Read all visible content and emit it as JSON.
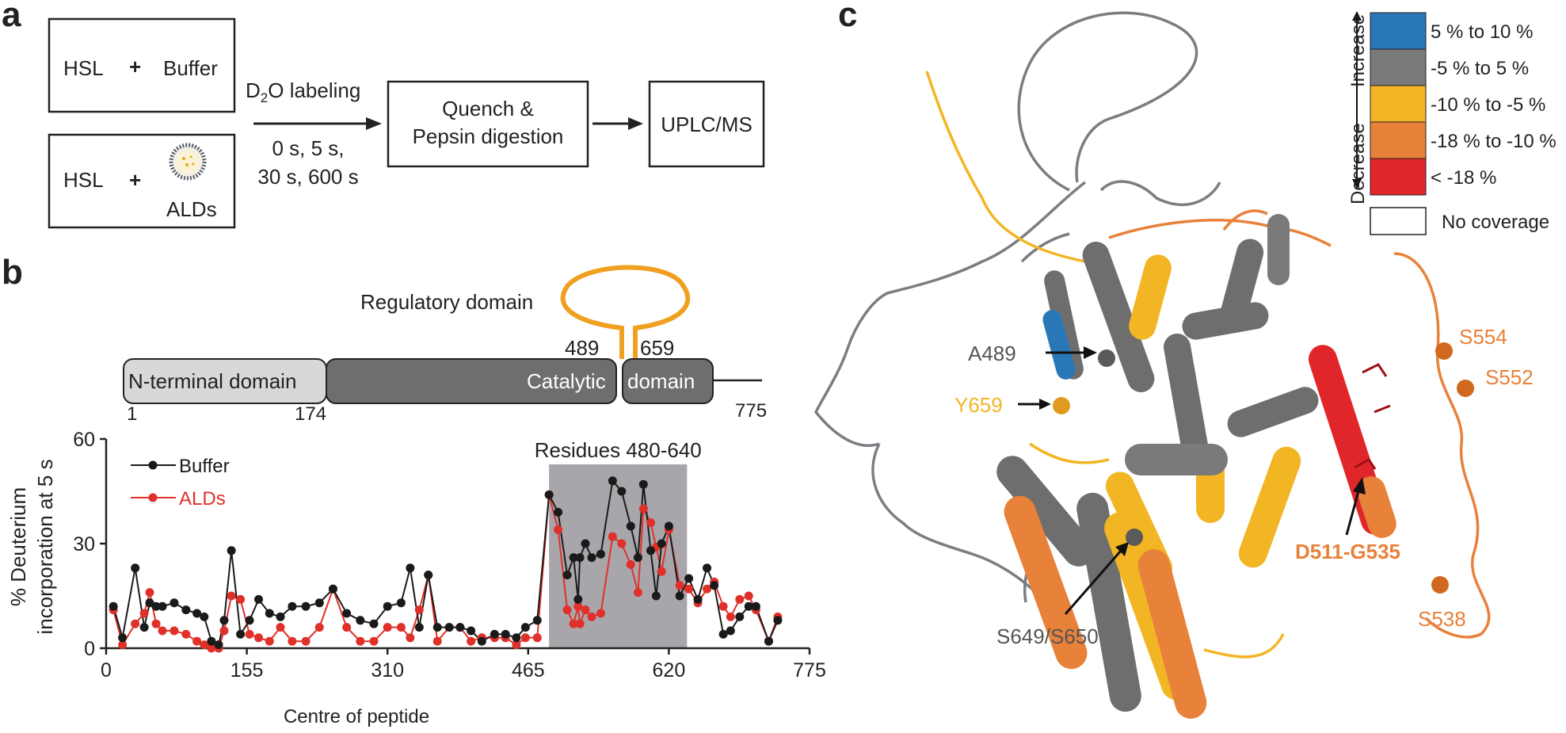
{
  "panels": {
    "a": {
      "letter": "a",
      "box1": {
        "left": "HSL",
        "plus": "+",
        "right": "Buffer"
      },
      "box2": {
        "left": "HSL",
        "plus": "+",
        "right": "ALDs"
      },
      "labeling": {
        "main": "D",
        "sub": "2",
        "rest": "O labeling",
        "times1": "0 s, 5 s,",
        "times2": "30 s, 600 s"
      },
      "quench": {
        "line1": "Quench &",
        "line2": "Pepsin digestion"
      },
      "uplc": "UPLC/MS"
    },
    "b": {
      "letter": "b",
      "domain_map": {
        "regulatory_label": "Regulatory domain",
        "n_terminal_label": "N-terminal domain",
        "catalytic_left": "Catalytic",
        "catalytic_right": "domain",
        "pos_1": "1",
        "pos_174": "174",
        "pos_489": "489",
        "pos_659": "659",
        "pos_775": "775"
      },
      "highlight_label": "Residues 480-640",
      "colors": {
        "buffer": "#1a1a1a",
        "alds": "#e0302a",
        "regulatory": "#f0a020",
        "n_terminal": "#d8d8d8",
        "catalytic": "#6e6e6e",
        "shade": "#a8a6aa"
      }
    },
    "c": {
      "letter": "c",
      "legend": {
        "increase": "Increase",
        "decrease": "Decrease",
        "items": [
          {
            "color": "#2a77b8",
            "label": "5 % to 10 %"
          },
          {
            "color": "#7a7a7a",
            "label": "-5 % to 5 %"
          },
          {
            "color": "#f2b624",
            "label": "-10 % to -5 %"
          },
          {
            "color": "#e8813a",
            "label": "-18 % to -10 %"
          },
          {
            "color": "#e0262a",
            "label": "< -18 %"
          },
          {
            "color": "#ffffff",
            "label": "No coverage"
          }
        ]
      },
      "annotations": {
        "a489": "A489",
        "y659": "Y659",
        "s554": "S554",
        "s552": "S552",
        "d511": "D511-G535",
        "s538": "S538",
        "s649": "S649/S650"
      }
    }
  },
  "chart_data": {
    "type": "line",
    "title": "",
    "xlabel": "Centre of peptide",
    "ylabel": "% Deuterium incorporation at 5 s",
    "xlim": [
      0,
      775
    ],
    "ylim": [
      0,
      60
    ],
    "xticks": [
      0,
      155,
      310,
      465,
      620,
      775
    ],
    "yticks": [
      0,
      30,
      60
    ],
    "highlight_region": [
      488,
      640
    ],
    "legend_placement": "top-left",
    "series": [
      {
        "name": "Buffer",
        "color": "#1a1a1a",
        "points": [
          [
            8,
            12
          ],
          [
            18,
            3
          ],
          [
            32,
            23
          ],
          [
            42,
            6
          ],
          [
            48,
            13
          ],
          [
            55,
            12
          ],
          [
            62,
            12
          ],
          [
            75,
            13
          ],
          [
            88,
            11
          ],
          [
            100,
            10
          ],
          [
            108,
            9
          ],
          [
            116,
            2
          ],
          [
            124,
            1
          ],
          [
            130,
            8
          ],
          [
            138,
            28
          ],
          [
            148,
            4
          ],
          [
            158,
            8
          ],
          [
            168,
            14
          ],
          [
            180,
            10
          ],
          [
            192,
            9
          ],
          [
            205,
            12
          ],
          [
            220,
            12
          ],
          [
            235,
            13
          ],
          [
            250,
            17
          ],
          [
            265,
            10
          ],
          [
            280,
            8
          ],
          [
            295,
            7
          ],
          [
            310,
            12
          ],
          [
            325,
            13
          ],
          [
            335,
            23
          ],
          [
            345,
            6
          ],
          [
            355,
            21
          ],
          [
            365,
            6
          ],
          [
            378,
            6
          ],
          [
            390,
            6
          ],
          [
            402,
            5
          ],
          [
            414,
            2
          ],
          [
            428,
            4
          ],
          [
            440,
            4
          ],
          [
            452,
            3
          ],
          [
            462,
            6
          ],
          [
            475,
            8
          ],
          [
            488,
            44
          ],
          [
            498,
            39
          ],
          [
            508,
            21
          ],
          [
            515,
            26
          ],
          [
            520,
            14
          ],
          [
            522,
            26
          ],
          [
            528,
            30
          ],
          [
            535,
            26
          ],
          [
            545,
            27
          ],
          [
            558,
            48
          ],
          [
            568,
            45
          ],
          [
            578,
            35
          ],
          [
            586,
            26
          ],
          [
            592,
            47
          ],
          [
            600,
            28
          ],
          [
            606,
            15
          ],
          [
            612,
            30
          ],
          [
            620,
            35
          ],
          [
            632,
            15
          ],
          [
            642,
            20
          ],
          [
            652,
            14
          ],
          [
            662,
            23
          ],
          [
            670,
            18
          ],
          [
            680,
            4
          ],
          [
            688,
            5
          ],
          [
            698,
            9
          ],
          [
            708,
            12
          ],
          [
            716,
            12
          ],
          [
            730,
            2
          ],
          [
            740,
            8
          ]
        ]
      },
      {
        "name": "ALDs",
        "color": "#e0302a",
        "points": [
          [
            8,
            11
          ],
          [
            18,
            1
          ],
          [
            32,
            7
          ],
          [
            42,
            10
          ],
          [
            48,
            16
          ],
          [
            55,
            7
          ],
          [
            62,
            5
          ],
          [
            75,
            5
          ],
          [
            88,
            4
          ],
          [
            100,
            2
          ],
          [
            108,
            1
          ],
          [
            116,
            0
          ],
          [
            124,
            0
          ],
          [
            130,
            5
          ],
          [
            138,
            15
          ],
          [
            148,
            14
          ],
          [
            158,
            4
          ],
          [
            168,
            3
          ],
          [
            180,
            2
          ],
          [
            192,
            6
          ],
          [
            205,
            2
          ],
          [
            220,
            2
          ],
          [
            235,
            6
          ],
          [
            250,
            17
          ],
          [
            265,
            6
          ],
          [
            280,
            2
          ],
          [
            295,
            2
          ],
          [
            310,
            6
          ],
          [
            325,
            6
          ],
          [
            335,
            3
          ],
          [
            345,
            11
          ],
          [
            355,
            21
          ],
          [
            365,
            2
          ],
          [
            378,
            6
          ],
          [
            390,
            6
          ],
          [
            402,
            2
          ],
          [
            414,
            3
          ],
          [
            428,
            3
          ],
          [
            440,
            3
          ],
          [
            452,
            1
          ],
          [
            462,
            3
          ],
          [
            475,
            3
          ],
          [
            488,
            44
          ],
          [
            498,
            34
          ],
          [
            508,
            11
          ],
          [
            515,
            7
          ],
          [
            520,
            12
          ],
          [
            522,
            7
          ],
          [
            528,
            11
          ],
          [
            535,
            9
          ],
          [
            545,
            10
          ],
          [
            558,
            32
          ],
          [
            568,
            30
          ],
          [
            578,
            24
          ],
          [
            586,
            16
          ],
          [
            592,
            40
          ],
          [
            600,
            36
          ],
          [
            606,
            29
          ],
          [
            612,
            22
          ],
          [
            620,
            34
          ],
          [
            632,
            18
          ],
          [
            642,
            17
          ],
          [
            652,
            13
          ],
          [
            662,
            17
          ],
          [
            670,
            19
          ],
          [
            680,
            12
          ],
          [
            688,
            9
          ],
          [
            698,
            14
          ],
          [
            708,
            15
          ],
          [
            716,
            11
          ],
          [
            730,
            2
          ],
          [
            740,
            9
          ]
        ]
      }
    ]
  }
}
